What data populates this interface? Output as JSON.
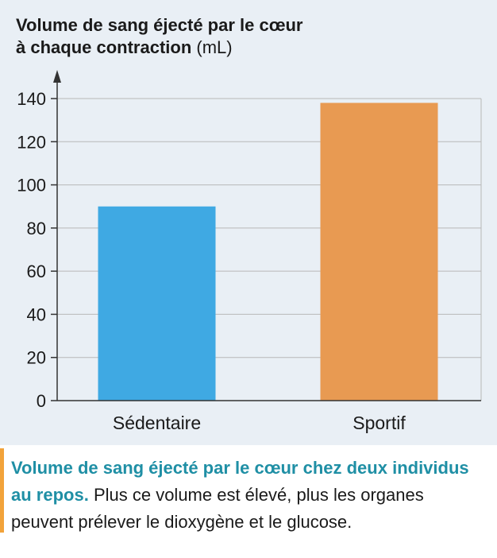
{
  "chart_data": {
    "type": "bar",
    "ylabel": "Volume de sang éjecté par le cœur à chaque contraction",
    "ylabel_line1": "Volume de sang éjecté par le cœur",
    "ylabel_line2": "à chaque contraction",
    "yunit": "(mL)",
    "categories": [
      "Sédentaire",
      "Sportif"
    ],
    "values": [
      90,
      138
    ],
    "ylim": [
      0,
      140
    ],
    "yticks": [
      0,
      20,
      40,
      60,
      80,
      100,
      120,
      140
    ],
    "grid": true,
    "colors": [
      "#3fa9e3",
      "#e89a52"
    ]
  },
  "caption": {
    "lead": "Volume de sang éjecté par le cœur chez deux individus au repos.",
    "body": "Plus ce volume est élevé, plus les organes peuvent prélever le dioxygène et le glucose.",
    "accent_color": "#1f8fa5",
    "bar_color": "#f2a33a"
  }
}
